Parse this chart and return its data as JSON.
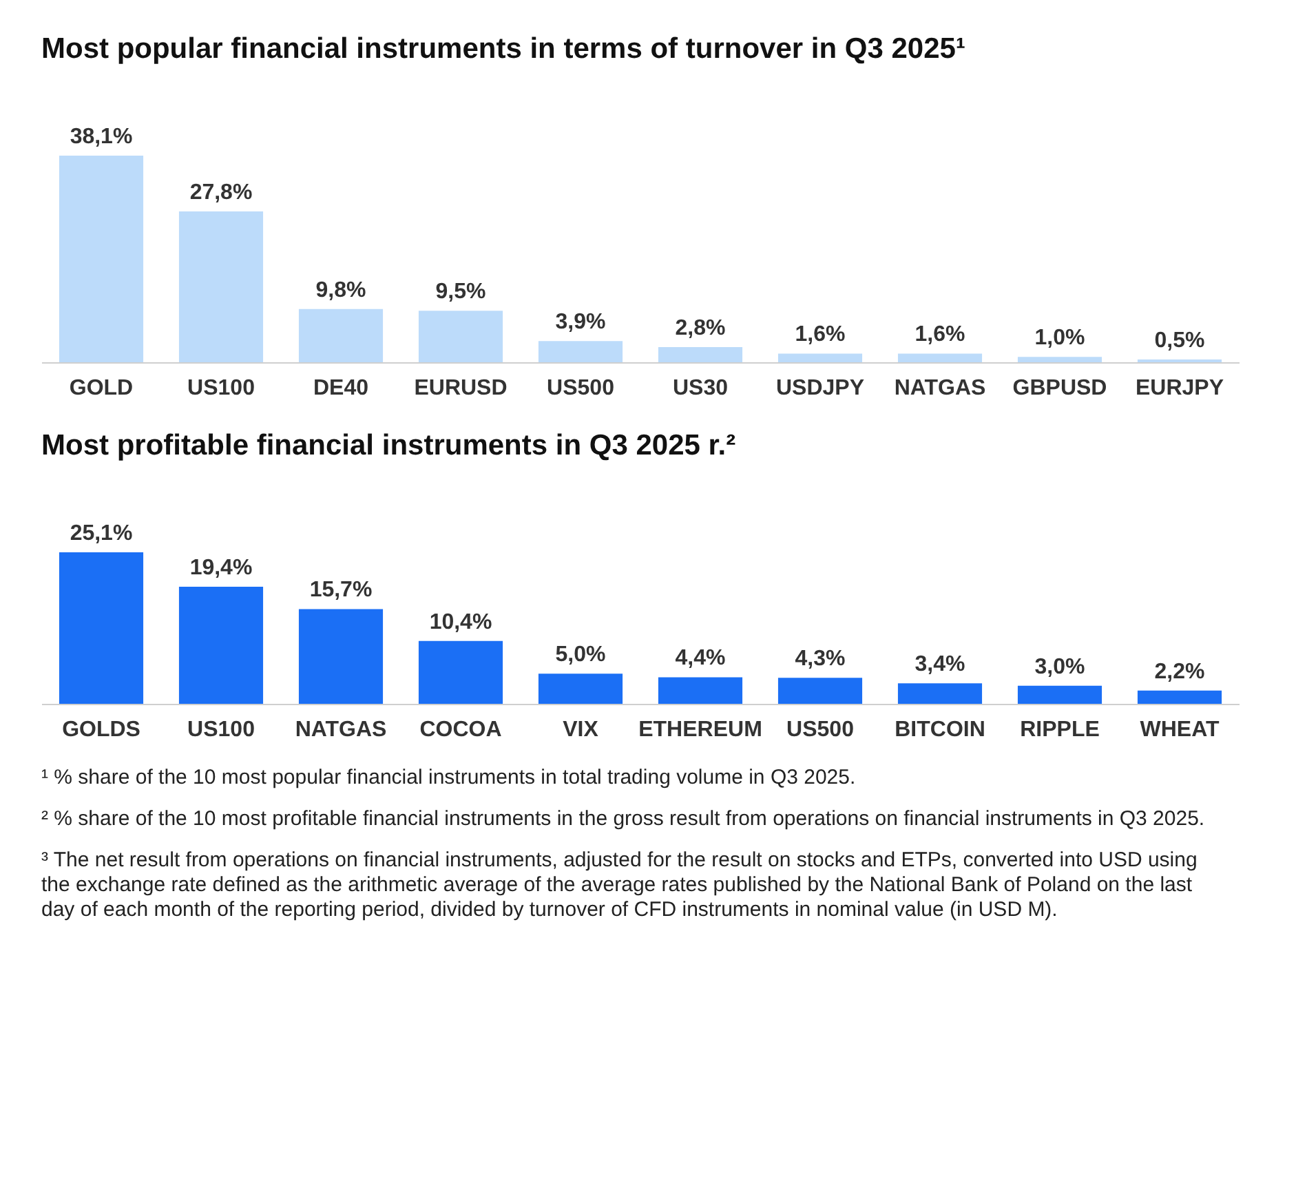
{
  "chart_data": [
    {
      "type": "bar",
      "title": "Most popular financial instruments in terms of turnover in Q3 2025¹",
      "categories": [
        "GOLD",
        "US100",
        "DE40",
        "EURUSD",
        "US500",
        "US30",
        "USDJPY",
        "NATGAS",
        "GBPUSD",
        "EURJPY"
      ],
      "values": [
        38.1,
        27.8,
        9.8,
        9.5,
        3.9,
        2.8,
        1.6,
        1.6,
        1.0,
        0.5
      ],
      "value_labels": [
        "38,1%",
        "27,8%",
        "9,8%",
        "9,5%",
        "3,9%",
        "2,8%",
        "1,6%",
        "1,6%",
        "1,0%",
        "0,5%"
      ],
      "color": "#bcdbfa"
    },
    {
      "type": "bar",
      "title": "Most profitable financial instruments in Q3 2025 r.²",
      "categories": [
        "GOLDS",
        "US100",
        "NATGAS",
        "COCOA",
        "VIX",
        "ETHEREUM",
        "US500",
        "BITCOIN",
        "RIPPLE",
        "WHEAT"
      ],
      "values": [
        25.1,
        19.4,
        15.7,
        10.4,
        5.0,
        4.4,
        4.3,
        3.4,
        3.0,
        2.2
      ],
      "value_labels": [
        "25,1%",
        "19,4%",
        "15,7%",
        "10,4%",
        "5,0%",
        "4,4%",
        "4,3%",
        "3,4%",
        "3,0%",
        "2,2%"
      ],
      "color": "#1b6ff5",
      "annotations": [
        "¹ % share of the 10 most popular financial instruments in total trading volume in Q3 2025.",
        "² % share of the 10 most profitable financial instruments in the gross result from operations on financial instruments in Q3 2025.",
        "³ The net result from operations on financial instruments, adjusted for the result on stocks and ETPs, converted into USD using the exchange rate defined as the arithmetic average of the average rates published by the National Bank of Poland on the last day of each month of the reporting period, divided by turnover of CFD instruments in nominal value (in USD M)."
      ]
    }
  ]
}
